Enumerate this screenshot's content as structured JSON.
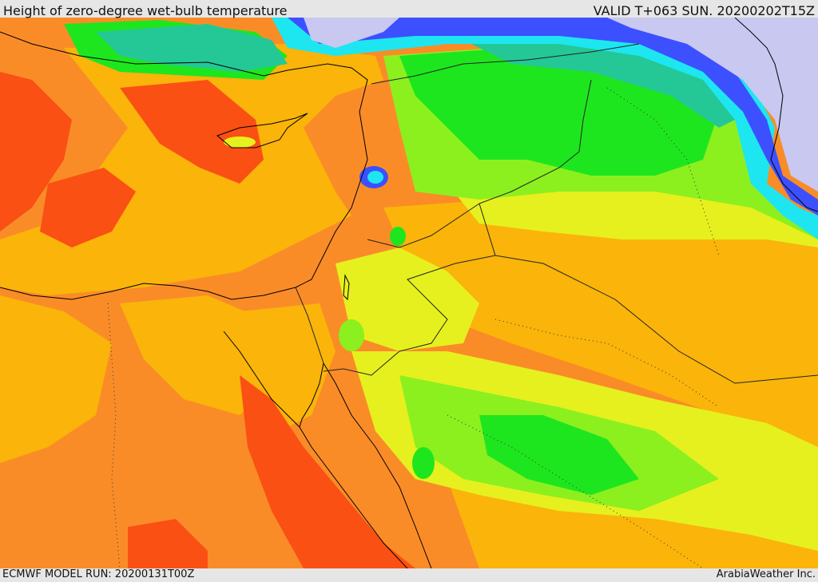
{
  "header": {
    "title": "Height of zero-degree wet-bulb temperature",
    "valid": "VALID T+063 SUN. 20200202T15Z"
  },
  "footer": {
    "model_run": "ECMWF MODEL RUN: 20200131T00Z",
    "credit": "ArabiaWeather Inc."
  },
  "map": {
    "region": "Eastern Mediterranean, Egypt, Levant, Iraq, northern Saudi Arabia",
    "colors": {
      "lowest": "#c8c8f0",
      "very_low": "#3c50ff",
      "cyan": "#1ee6f0",
      "teal": "#23c896",
      "green": "#1ee61e",
      "light_green": "#8cf01e",
      "yellow_green": "#e6f01e",
      "gold": "#fab40a",
      "orange": "#fa8c28",
      "red_orange": "#fa5014",
      "coastline": "#000000",
      "borders": "#222222"
    }
  }
}
